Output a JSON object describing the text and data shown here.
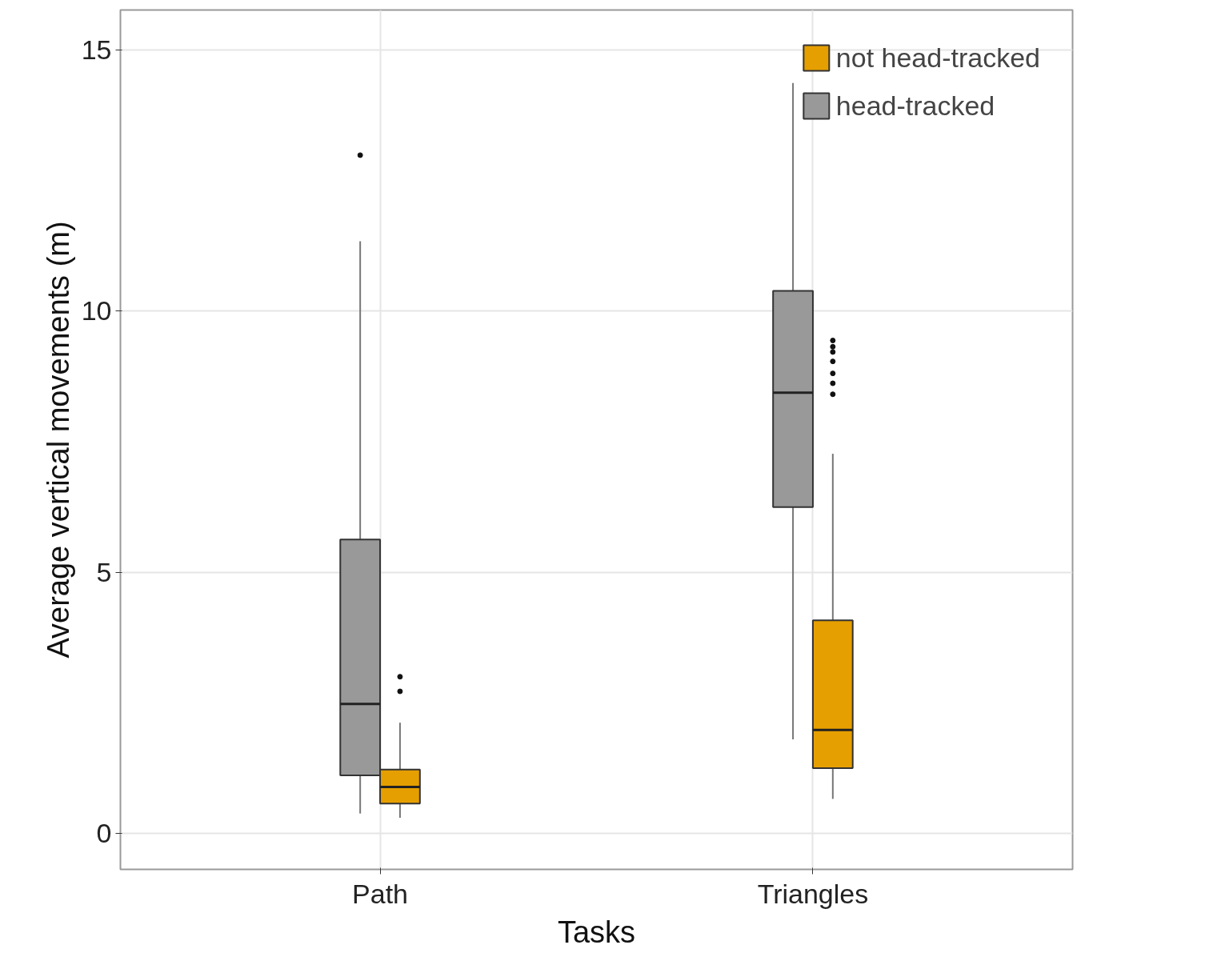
{
  "chart_data": {
    "type": "box",
    "xlabel": "Tasks",
    "ylabel": "Average vertical movements (m)",
    "categories": [
      "Path",
      "Triangles"
    ],
    "series": [
      {
        "name": "head-tracked",
        "color": "#999999",
        "boxes": [
          {
            "low": 0.38,
            "q1": 1.11,
            "median": 2.48,
            "q3": 5.63,
            "high": 11.34,
            "outliers": [
              12.99
            ]
          },
          {
            "low": 1.8,
            "q1": 6.25,
            "median": 8.44,
            "q3": 10.39,
            "high": 14.37
          }
        ]
      },
      {
        "name": "not head-tracked",
        "color": "#e69f00",
        "boxes": [
          {
            "low": 0.3,
            "q1": 0.57,
            "median": 0.89,
            "q3": 1.22,
            "high": 2.12,
            "outliers": [
              2.72,
              3.0
            ]
          },
          {
            "low": 0.66,
            "q1": 1.25,
            "median": 1.98,
            "q3": 4.08,
            "high": 7.27,
            "outliers": [
              8.41,
              8.62,
              8.81,
              9.04,
              9.22,
              9.32,
              9.44
            ]
          }
        ]
      }
    ],
    "ylim": [
      -0.69,
      15.77
    ],
    "yticks": [
      0,
      5,
      10,
      15
    ],
    "grid": true,
    "legend": "top right"
  }
}
